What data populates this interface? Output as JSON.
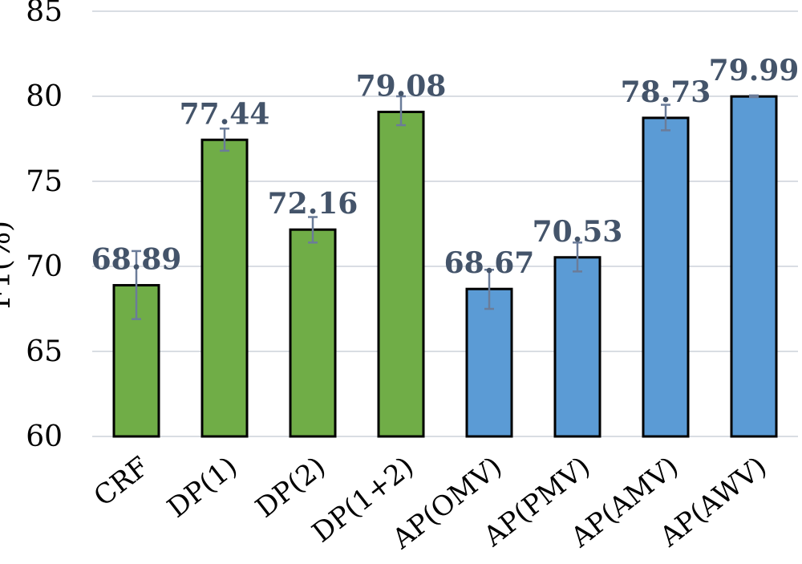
{
  "chart_data": {
    "type": "bar",
    "title": "",
    "xlabel": "",
    "ylabel": "F1(%)",
    "ylim": [
      60,
      85
    ],
    "yticks": [
      60,
      65,
      70,
      75,
      80,
      85
    ],
    "grid": "horizontal",
    "categories": [
      "CRF",
      "DP(1)",
      "DP(2)",
      "DP(1+2)",
      "AP(OMV)",
      "AP(PMV)",
      "AP(AMV)",
      "AP(AWV)"
    ],
    "values": [
      68.89,
      77.44,
      72.16,
      79.08,
      68.67,
      70.53,
      78.73,
      79.99
    ],
    "data_labels": [
      "68.89",
      "77.44",
      "72.16",
      "79.08",
      "68.67",
      "70.53",
      "78.73",
      "79.99"
    ],
    "error_bars": [
      {
        "low": 66.9,
        "high": 70.9
      },
      {
        "low": 76.8,
        "high": 78.1
      },
      {
        "low": 71.4,
        "high": 72.9
      },
      {
        "low": 78.3,
        "high": 80.0
      },
      {
        "low": 67.5,
        "high": 69.8
      },
      {
        "low": 69.7,
        "high": 71.4
      },
      {
        "low": 78.0,
        "high": 79.5
      },
      {
        "low": 79.95,
        "high": 80.05
      }
    ],
    "bar_colors": [
      "#70ad47",
      "#70ad47",
      "#70ad47",
      "#70ad47",
      "#5b9bd5",
      "#5b9bd5",
      "#5b9bd5",
      "#5b9bd5"
    ],
    "error_bar_color": "#6b7c99",
    "data_label_color": "#44546a"
  }
}
